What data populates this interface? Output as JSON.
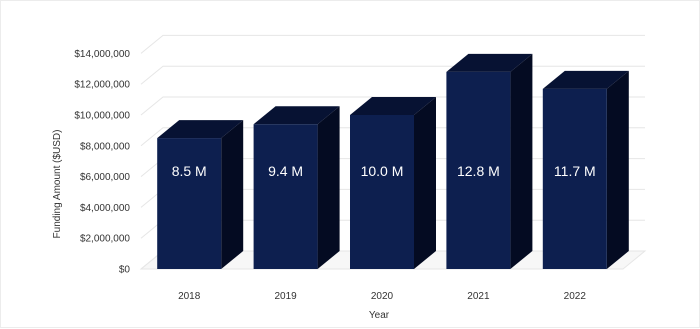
{
  "chart_data": {
    "type": "bar",
    "categories": [
      "2018",
      "2019",
      "2020",
      "2021",
      "2022"
    ],
    "values": [
      8500000,
      9400000,
      10000000,
      12800000,
      11700000
    ],
    "data_labels": [
      "8.5 M",
      "9.4 M",
      "10.0 M",
      "12.8 M",
      "11.7 M"
    ],
    "title": "",
    "xlabel": "Year",
    "ylabel": "Funding Amount ($USD)",
    "ylim": [
      0,
      14000000
    ],
    "yticks": [
      0,
      2000000,
      4000000,
      6000000,
      8000000,
      10000000,
      12000000,
      14000000
    ],
    "ytick_labels": [
      "$0",
      "$2,000,000",
      "$4,000,000",
      "$6,000,000",
      "$8,000,000",
      "$10,000,000",
      "$12,000,000",
      "$14,000,000"
    ],
    "grid": true,
    "legend": "none",
    "style": "3d",
    "colors": {
      "bar_front": "#0d1f4f",
      "bar_top": "#071233",
      "bar_side": "#040b22",
      "grid": "#e6e6e6"
    }
  }
}
